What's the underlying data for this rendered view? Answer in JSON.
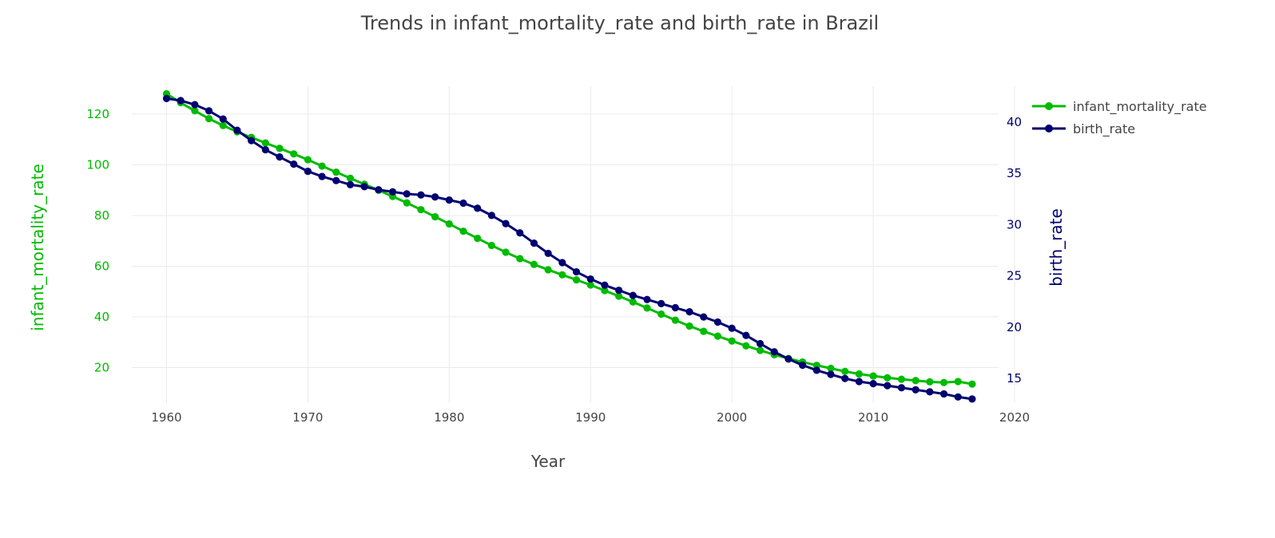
{
  "chart_data": {
    "type": "line",
    "title": "Trends in infant_mortality_rate and birth_rate in Brazil",
    "xlabel": "Year",
    "ylabel_left": "infant_mortality_rate",
    "ylabel_right": "birth_rate",
    "xlim": [
      1955,
      2020
    ],
    "xticks": [
      1960,
      1970,
      1980,
      1990,
      2000,
      2010,
      2020
    ],
    "ylim_left": [
      6,
      131
    ],
    "yticks_left": [
      20,
      40,
      60,
      80,
      100,
      120
    ],
    "ylim_right": [
      12.6,
      43.5
    ],
    "yticks_right": [
      15,
      20,
      25,
      30,
      35,
      40
    ],
    "grid": true,
    "legend_position": "top-right",
    "x": [
      1960,
      1961,
      1962,
      1963,
      1964,
      1965,
      1966,
      1967,
      1968,
      1969,
      1970,
      1971,
      1972,
      1973,
      1974,
      1975,
      1976,
      1977,
      1978,
      1979,
      1980,
      1981,
      1982,
      1983,
      1984,
      1985,
      1986,
      1987,
      1988,
      1989,
      1990,
      1991,
      1992,
      1993,
      1994,
      1995,
      1996,
      1997,
      1998,
      1999,
      2000,
      2001,
      2002,
      2003,
      2004,
      2005,
      2006,
      2007,
      2008,
      2009,
      2010,
      2011,
      2012,
      2013,
      2014,
      2015,
      2016,
      2017
    ],
    "series": [
      {
        "name": "infant_mortality_rate",
        "axis": "left",
        "color": "#00bb00",
        "values": [
          128,
          124.5,
          121.3,
          118.2,
          115.5,
          113,
          110.8,
          108.6,
          106.5,
          104.3,
          102,
          99.5,
          97.1,
          94.7,
          92.3,
          90,
          87.5,
          85,
          82.3,
          79.5,
          76.7,
          73.8,
          71,
          68.2,
          65.5,
          63,
          60.7,
          58.6,
          56.6,
          54.6,
          52.6,
          50.4,
          48.2,
          45.9,
          43.5,
          41.1,
          38.7,
          36.4,
          34.3,
          32.4,
          30.5,
          28.6,
          26.8,
          25.1,
          23.6,
          22.2,
          20.9,
          19.7,
          18.5,
          17.5,
          16.7,
          16,
          15.4,
          14.9,
          14.4,
          14.1,
          14.5,
          13.5
        ],
        "show_in_legend": true
      },
      {
        "name": "birth_rate",
        "axis": "right",
        "color": "#000070",
        "values": [
          42.3,
          42.1,
          41.7,
          41.1,
          40.3,
          39.2,
          38.2,
          37.3,
          36.6,
          35.9,
          35.2,
          34.7,
          34.3,
          33.9,
          33.7,
          33.4,
          33.2,
          33,
          32.9,
          32.7,
          32.4,
          32.1,
          31.6,
          30.9,
          30.1,
          29.2,
          28.2,
          27.2,
          26.3,
          25.4,
          24.7,
          24.1,
          23.6,
          23.1,
          22.7,
          22.3,
          21.9,
          21.5,
          21,
          20.5,
          19.9,
          19.2,
          18.4,
          17.6,
          16.9,
          16.3,
          15.8,
          15.4,
          15,
          14.7,
          14.5,
          14.3,
          14.1,
          13.9,
          13.7,
          13.5,
          13.2,
          13
        ]
      }
    ]
  }
}
